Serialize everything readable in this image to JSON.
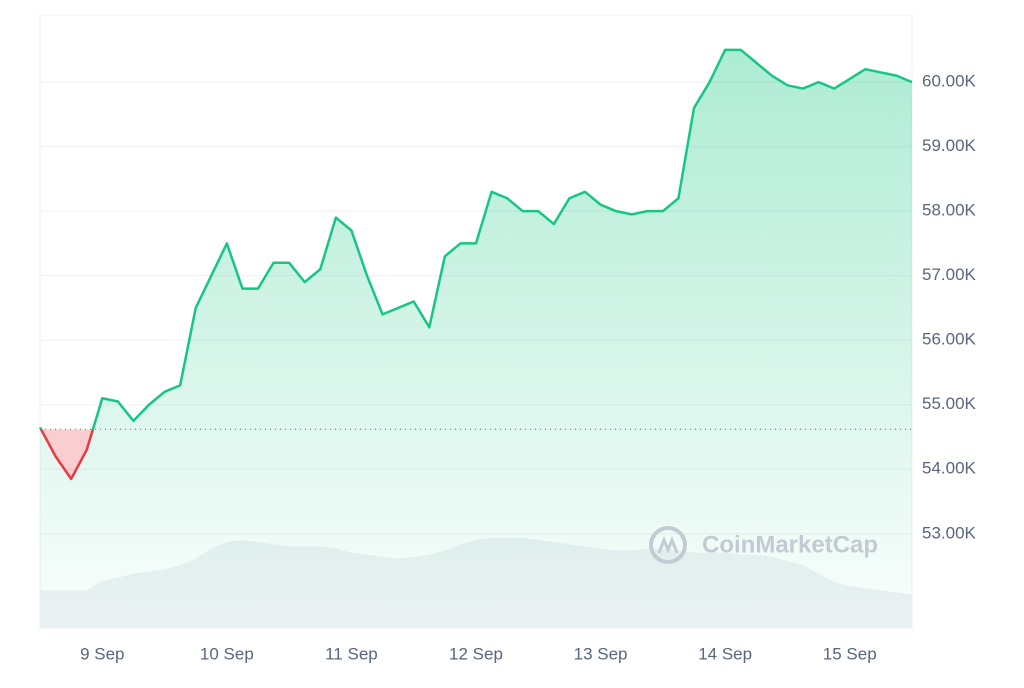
{
  "chart_data": {
    "type": "line",
    "categories": [
      null,
      null,
      null,
      null,
      "9 Sep",
      null,
      null,
      null,
      null,
      null,
      null,
      null,
      "10 Sep",
      null,
      null,
      null,
      null,
      null,
      null,
      null,
      "11 Sep",
      null,
      null,
      null,
      null,
      null,
      null,
      null,
      "12 Sep",
      null,
      null,
      null,
      null,
      null,
      null,
      null,
      "13 Sep",
      null,
      null,
      null,
      null,
      null,
      null,
      null,
      "14 Sep",
      null,
      null,
      null,
      null,
      null,
      null,
      null,
      "15 Sep",
      null,
      null,
      null,
      null
    ],
    "values": [
      54650,
      54200,
      53850,
      54300,
      55100,
      55050,
      54750,
      55000,
      55200,
      55300,
      56500,
      57000,
      57500,
      56800,
      56800,
      57200,
      57200,
      56900,
      57100,
      57900,
      57700,
      57000,
      56400,
      56500,
      56600,
      56200,
      57300,
      57500,
      57500,
      58300,
      58200,
      58000,
      58000,
      57800,
      58200,
      58300,
      58100,
      58000,
      57950,
      58000,
      58000,
      58200,
      59600,
      60000,
      60500,
      60500,
      60300,
      60100,
      59950,
      59900,
      60000,
      59900,
      60050,
      60200,
      60150,
      60100,
      60000
    ],
    "baseline": 54620,
    "color": "#16c784",
    "below_color": "#ea3943",
    "volume": [
      36,
      36,
      36,
      36,
      45,
      48,
      52,
      54,
      56,
      60,
      66,
      76,
      82,
      84,
      82,
      80,
      78,
      78,
      78,
      76,
      72,
      70,
      68,
      66,
      68,
      70,
      74,
      80,
      84,
      86,
      86,
      86,
      84,
      82,
      80,
      78,
      76,
      74,
      74,
      76,
      76,
      74,
      72,
      72,
      72,
      70,
      70,
      68,
      64,
      60,
      52,
      44,
      40,
      38,
      36,
      34,
      32
    ],
    "ylim": [
      51540,
      61040
    ],
    "yticks": [
      {
        "value": 53000,
        "label": "53.00K"
      },
      {
        "value": 54000,
        "label": "54.00K"
      },
      {
        "value": 55000,
        "label": "55.00K"
      },
      {
        "value": 56000,
        "label": "56.00K"
      },
      {
        "value": 57000,
        "label": "57.00K"
      },
      {
        "value": 58000,
        "label": "58.00K"
      },
      {
        "value": 59000,
        "label": "59.00K"
      },
      {
        "value": 60000,
        "label": "60.00K"
      }
    ],
    "grid": true,
    "watermark": "CoinMarketCap"
  }
}
